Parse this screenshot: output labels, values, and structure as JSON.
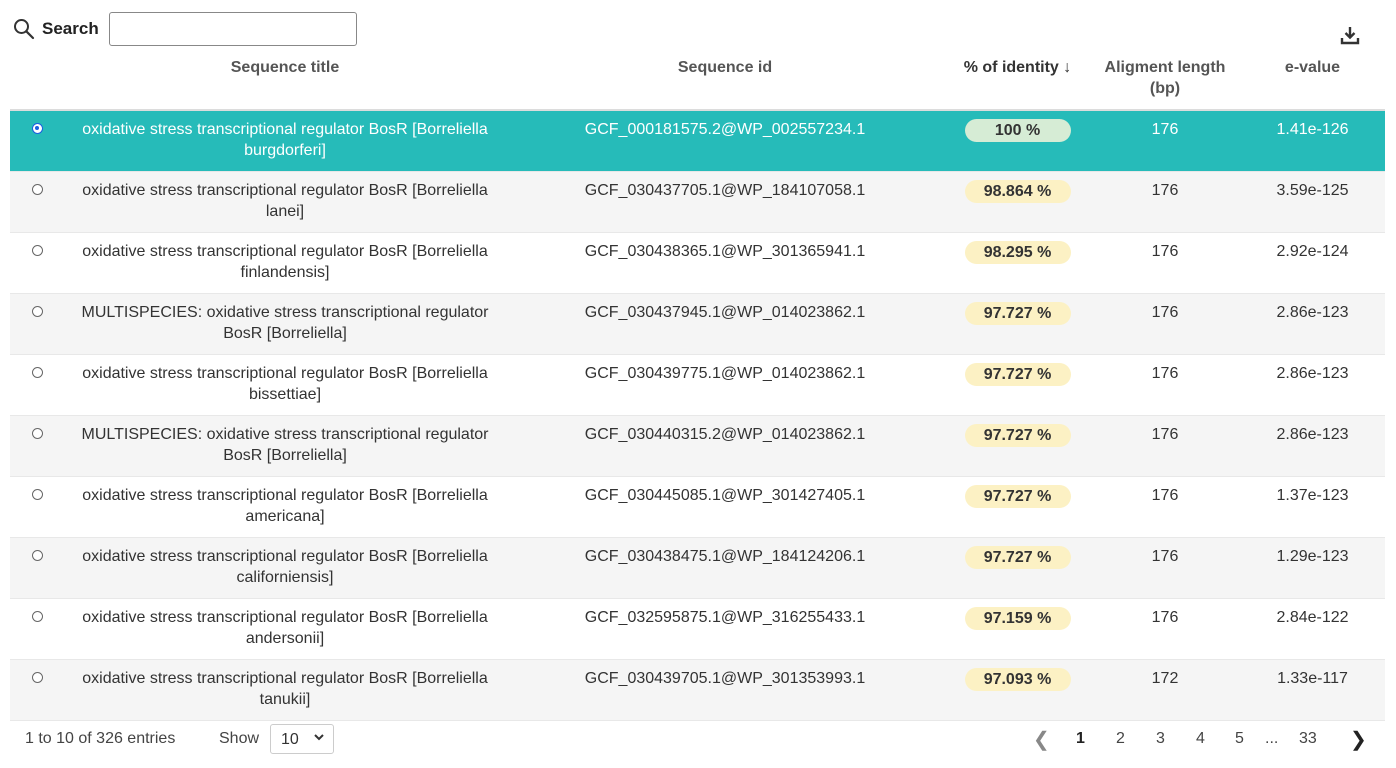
{
  "search": {
    "label": "Search",
    "value": "",
    "placeholder": ""
  },
  "headers": {
    "sequence_title": "Sequence title",
    "sequence_id": "Sequence id",
    "identity": "% of identity ↓",
    "alignment_length": "Aligment length (bp)",
    "evalue": "e-value"
  },
  "rows": [
    {
      "title": "oxidative stress transcriptional regulator BosR [Borreliella burgdorferi]",
      "id": "GCF_000181575.2@WP_002557234.1",
      "identity": "100 %",
      "length": "176",
      "evalue": "1.41e-126"
    },
    {
      "title": "oxidative stress transcriptional regulator BosR [Borreliella lanei]",
      "id": "GCF_030437705.1@WP_184107058.1",
      "identity": "98.864 %",
      "length": "176",
      "evalue": "3.59e-125"
    },
    {
      "title": "oxidative stress transcriptional regulator BosR [Borreliella finlandensis]",
      "id": "GCF_030438365.1@WP_301365941.1",
      "identity": "98.295 %",
      "length": "176",
      "evalue": "2.92e-124"
    },
    {
      "title": "MULTISPECIES: oxidative stress transcriptional regulator BosR [Borreliella]",
      "id": "GCF_030437945.1@WP_014023862.1",
      "identity": "97.727 %",
      "length": "176",
      "evalue": "2.86e-123"
    },
    {
      "title": "oxidative stress transcriptional regulator BosR [Borreliella bissettiae]",
      "id": "GCF_030439775.1@WP_014023862.1",
      "identity": "97.727 %",
      "length": "176",
      "evalue": "2.86e-123"
    },
    {
      "title": "MULTISPECIES: oxidative stress transcriptional regulator BosR [Borreliella]",
      "id": "GCF_030440315.2@WP_014023862.1",
      "identity": "97.727 %",
      "length": "176",
      "evalue": "2.86e-123"
    },
    {
      "title": "oxidative stress transcriptional regulator BosR [Borreliella americana]",
      "id": "GCF_030445085.1@WP_301427405.1",
      "identity": "97.727 %",
      "length": "176",
      "evalue": "1.37e-123"
    },
    {
      "title": "oxidative stress transcriptional regulator BosR [Borreliella californiensis]",
      "id": "GCF_030438475.1@WP_184124206.1",
      "identity": "97.727 %",
      "length": "176",
      "evalue": "1.29e-123"
    },
    {
      "title": "oxidative stress transcriptional regulator BosR [Borreliella andersonii]",
      "id": "GCF_032595875.1@WP_316255433.1",
      "identity": "97.159 %",
      "length": "176",
      "evalue": "2.84e-122"
    },
    {
      "title": "oxidative stress transcriptional regulator BosR [Borreliella tanukii]",
      "id": "GCF_030439705.1@WP_301353993.1",
      "identity": "97.093 %",
      "length": "172",
      "evalue": "1.33e-117"
    }
  ],
  "selected_row": 0,
  "footer": {
    "entries": "1 to 10 of 326 entries",
    "show_label": "Show",
    "page_size": "10",
    "pages": [
      "1",
      "2",
      "3",
      "4",
      "5",
      "...",
      "33"
    ],
    "prev": "❮",
    "next": "❯",
    "current_page": "1"
  },
  "colors": {
    "selected_row": "#26bbb9",
    "identity_pill": "#fcf1c4",
    "identity_pill_top": "#d6ecd5"
  },
  "icons": {
    "search": "search-icon",
    "download": "download-icon",
    "select": "chevron-down-icon"
  }
}
